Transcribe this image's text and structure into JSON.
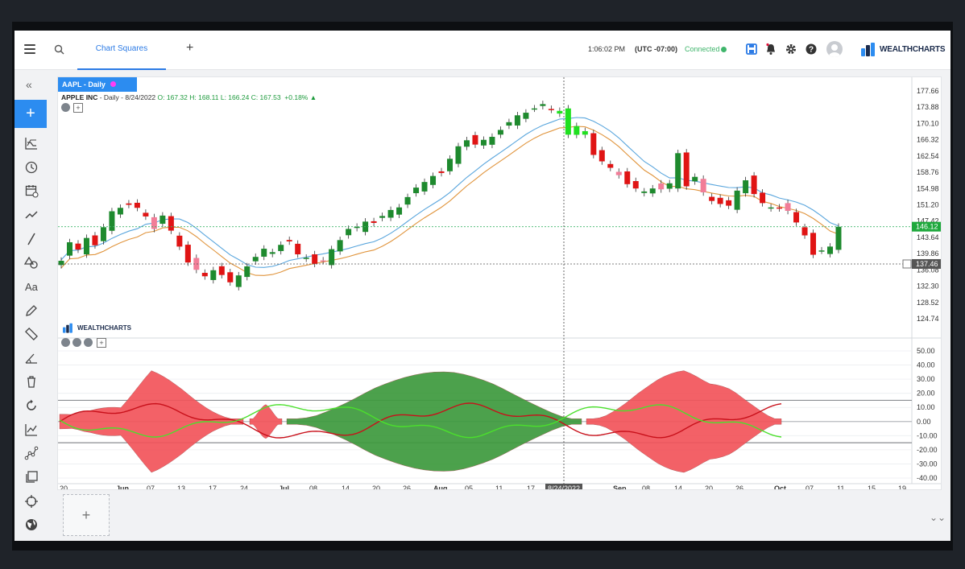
{
  "header": {
    "tab_label": "Chart Squares",
    "time": "1:06:02 PM",
    "timezone": "(UTC -07:00)",
    "connection": "Connected",
    "logo": "WEALTHCHARTS",
    "icons": [
      "menu-icon",
      "search-icon",
      "plus-icon",
      "save-icon",
      "bell-icon",
      "gear-icon",
      "help-icon",
      "user-icon"
    ]
  },
  "sidebar": {
    "icons": [
      "collapse-icon",
      "add-icon",
      "indicator-icon",
      "clock-icon",
      "calendar-icon",
      "trend-icon",
      "line-tool-icon",
      "shapes-icon",
      "text-icon",
      "pencil-icon",
      "ruler-icon",
      "angle-icon",
      "trash-icon",
      "refresh-icon",
      "chart-line-icon",
      "nodes-icon",
      "layers-icon",
      "crosshair-icon",
      "globe-icon"
    ],
    "add_label": "+",
    "collapse_label": "«"
  },
  "chart": {
    "symbol_tab": "AAPL - Daily",
    "name": "APPLE INC",
    "meta": " - Daily - 8/24/2022 ",
    "open": "O: 167.32",
    "high": "H: 168.11",
    "low": "L: 166.24",
    "close": "C: 167.53",
    "change": "+0.18%",
    "watermark": "WEALTHCHARTS",
    "current_price": "146.12",
    "crosshair_price": "137.46",
    "crosshair_date": "8/24/2022",
    "price_ticks": [
      "177.66",
      "173.88",
      "170.10",
      "166.32",
      "162.54",
      "158.76",
      "154.98",
      "151.20",
      "147.42",
      "143.64",
      "139.86",
      "136.08",
      "132.30",
      "128.52",
      "124.74"
    ],
    "osc_ticks": [
      "50.00",
      "40.00",
      "30.00",
      "20.00",
      "10.00",
      "0.00",
      "-10.00",
      "-20.00",
      "-30.00",
      "-40.00"
    ],
    "date_ticks": [
      "20",
      "Jun",
      "07",
      "13",
      "17",
      "24",
      "Jul",
      "08",
      "14",
      "20",
      "26",
      "Aug",
      "05",
      "11",
      "17",
      "8/24/2022",
      "Sep",
      "08",
      "14",
      "20",
      "26",
      "Oct",
      "07",
      "11",
      "15",
      "19"
    ],
    "colors": {
      "up": "#1e8a2e",
      "up_light": "#20e020",
      "down": "#e01414",
      "down_light": "#f27d98",
      "ma_fast": "#5aa6dd",
      "ma_slow": "#e0943c",
      "osc_green_fill": "#3d9a3d",
      "osc_red_fill": "#f2545b"
    }
  },
  "bottom": {
    "add_pane": "+",
    "collapse": "⌄⌄"
  }
}
